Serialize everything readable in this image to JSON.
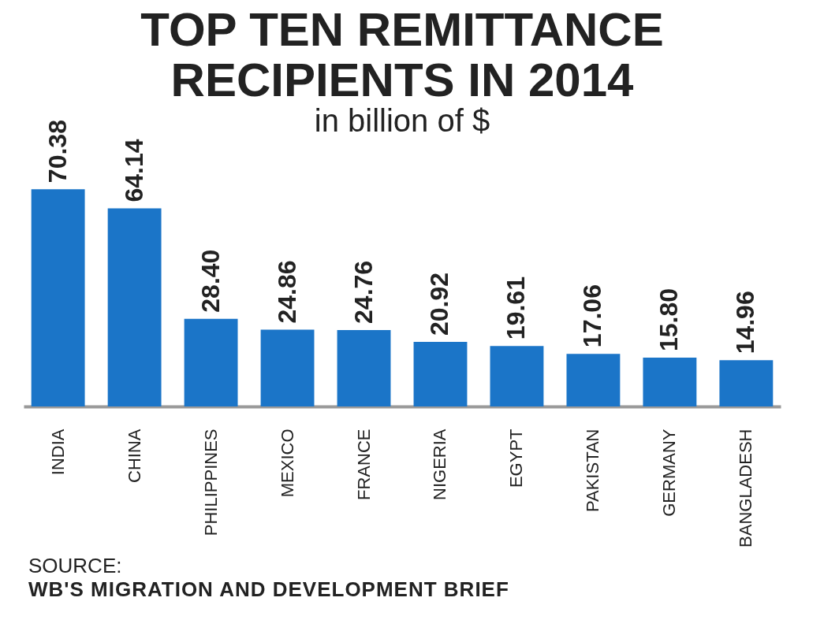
{
  "chart_data": {
    "type": "bar",
    "title": [
      "TOP TEN REMITTANCE",
      "RECIPIENTS IN 2014"
    ],
    "subtitle": "in billion of $",
    "categories": [
      "INDIA",
      "CHINA",
      "PHILIPPINES",
      "MEXICO",
      "FRANCE",
      "NIGERIA",
      "EGYPT",
      "PAKISTAN",
      "GERMANY",
      "BANGLADESH"
    ],
    "values": [
      70.38,
      64.14,
      28.4,
      24.86,
      24.76,
      20.92,
      19.61,
      17.06,
      15.8,
      14.96
    ],
    "value_labels": [
      "70.38",
      "64.14",
      "28.40",
      "24.86",
      "24.76",
      "20.92",
      "19.61",
      "17.06",
      "15.80",
      "14.96"
    ],
    "color": "#1b75c8",
    "data_labels": true,
    "annotations": [
      "SOURCE:",
      "WB'S MIGRATION AND DEVELOPMENT BRIEF"
    ]
  }
}
